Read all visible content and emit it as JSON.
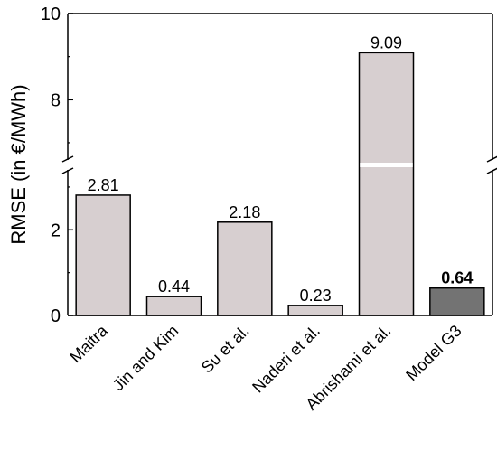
{
  "chart_data": {
    "type": "bar",
    "ylabel": "RMSE (in €/MWh)",
    "categories": [
      "Maitra",
      "Jin and Kim",
      "Su et al.",
      "Naderi et al.",
      "Abrishami et al.",
      "Model G3"
    ],
    "values": [
      2.81,
      0.44,
      2.18,
      0.23,
      9.09,
      0.64
    ],
    "value_labels": [
      "2.81",
      "0.44",
      "2.18",
      "0.23",
      "9.09",
      "0.64"
    ],
    "highlight_index": 5,
    "bar_color": "#d7cfd0",
    "highlight_color": "#737373",
    "y_break": true,
    "ylim_lower": [
      0,
      3.4
    ],
    "ylim_upper": [
      6.6,
      10
    ],
    "yticks_lower": [
      0,
      2
    ],
    "yticks_upper": [
      8,
      10
    ],
    "ytick_labels_lower": [
      "0",
      "2"
    ],
    "ytick_labels_upper": [
      "8",
      "10"
    ],
    "grid": false
  }
}
